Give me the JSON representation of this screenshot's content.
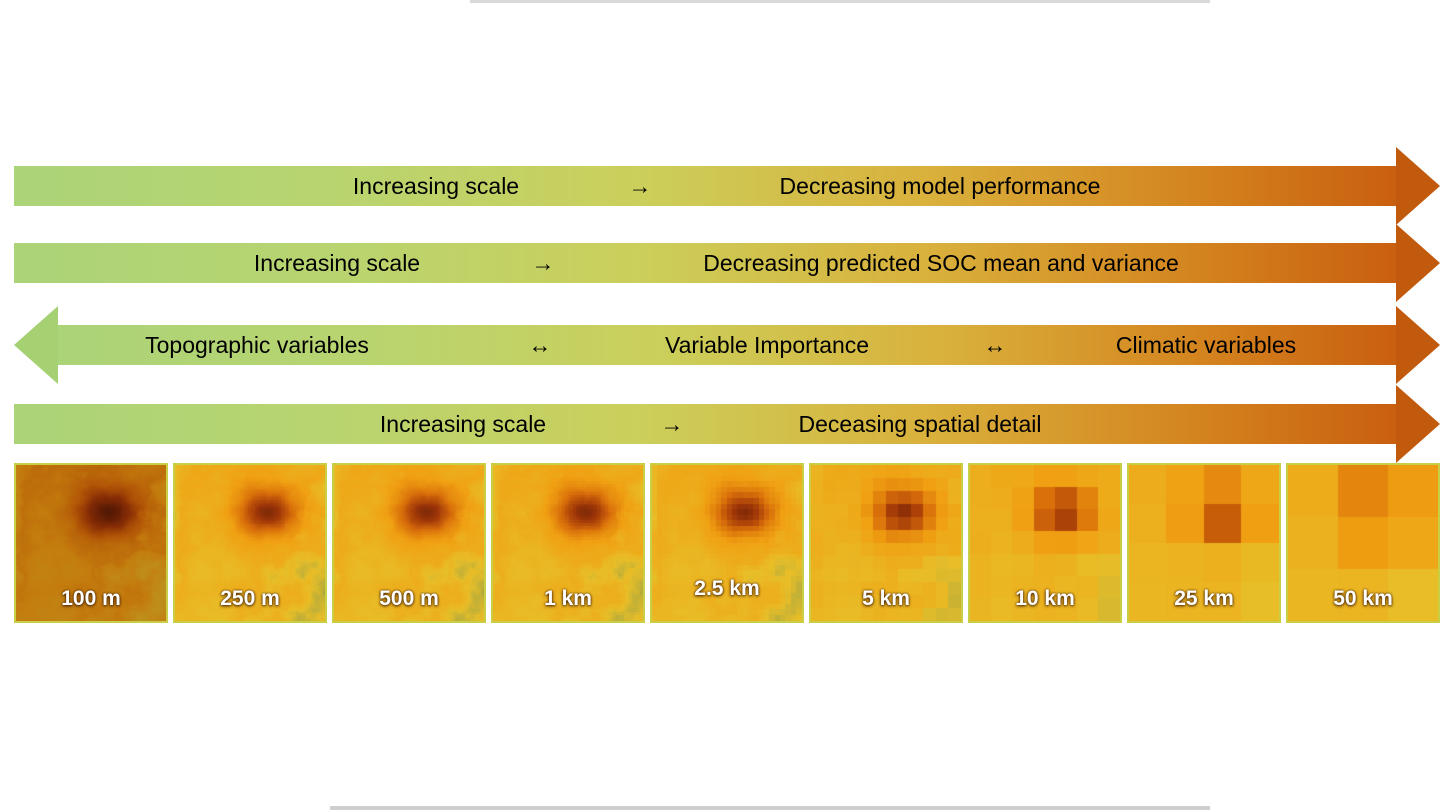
{
  "figure": {
    "background": "#ffffff",
    "gradient": {
      "start": "#abd378",
      "end": "#c95f10"
    },
    "arrowhead_right_color": "#c25a0e",
    "arrowhead_left_color": "#a5d172",
    "arrows": [
      {
        "direction": "right",
        "segments": [
          "Increasing scale",
          "→",
          "Decreasing model performance"
        ]
      },
      {
        "direction": "right",
        "segments": [
          "Increasing scale",
          "→",
          "Decreasing predicted SOC mean and variance"
        ]
      },
      {
        "direction": "both",
        "segments": [
          "Topographic variables",
          "↔",
          "Variable Importance",
          "↔",
          "Climatic variables"
        ]
      },
      {
        "direction": "right",
        "segments": [
          "Increasing scale",
          "→",
          "Deceasing spatial detail"
        ]
      }
    ],
    "maps": {
      "labels": [
        "100 m",
        "250 m",
        "500 m",
        "1 km",
        "2.5 km",
        "5 km",
        "10 km",
        "25 km",
        "50 km"
      ],
      "grid_cells": [
        160,
        110,
        80,
        56,
        28,
        12,
        7,
        4,
        3
      ],
      "palette": {
        "low_green": "#96a046",
        "yellow": "#e8be28",
        "orange": "#d86e0a",
        "dark_red": "#561a06"
      }
    }
  }
}
